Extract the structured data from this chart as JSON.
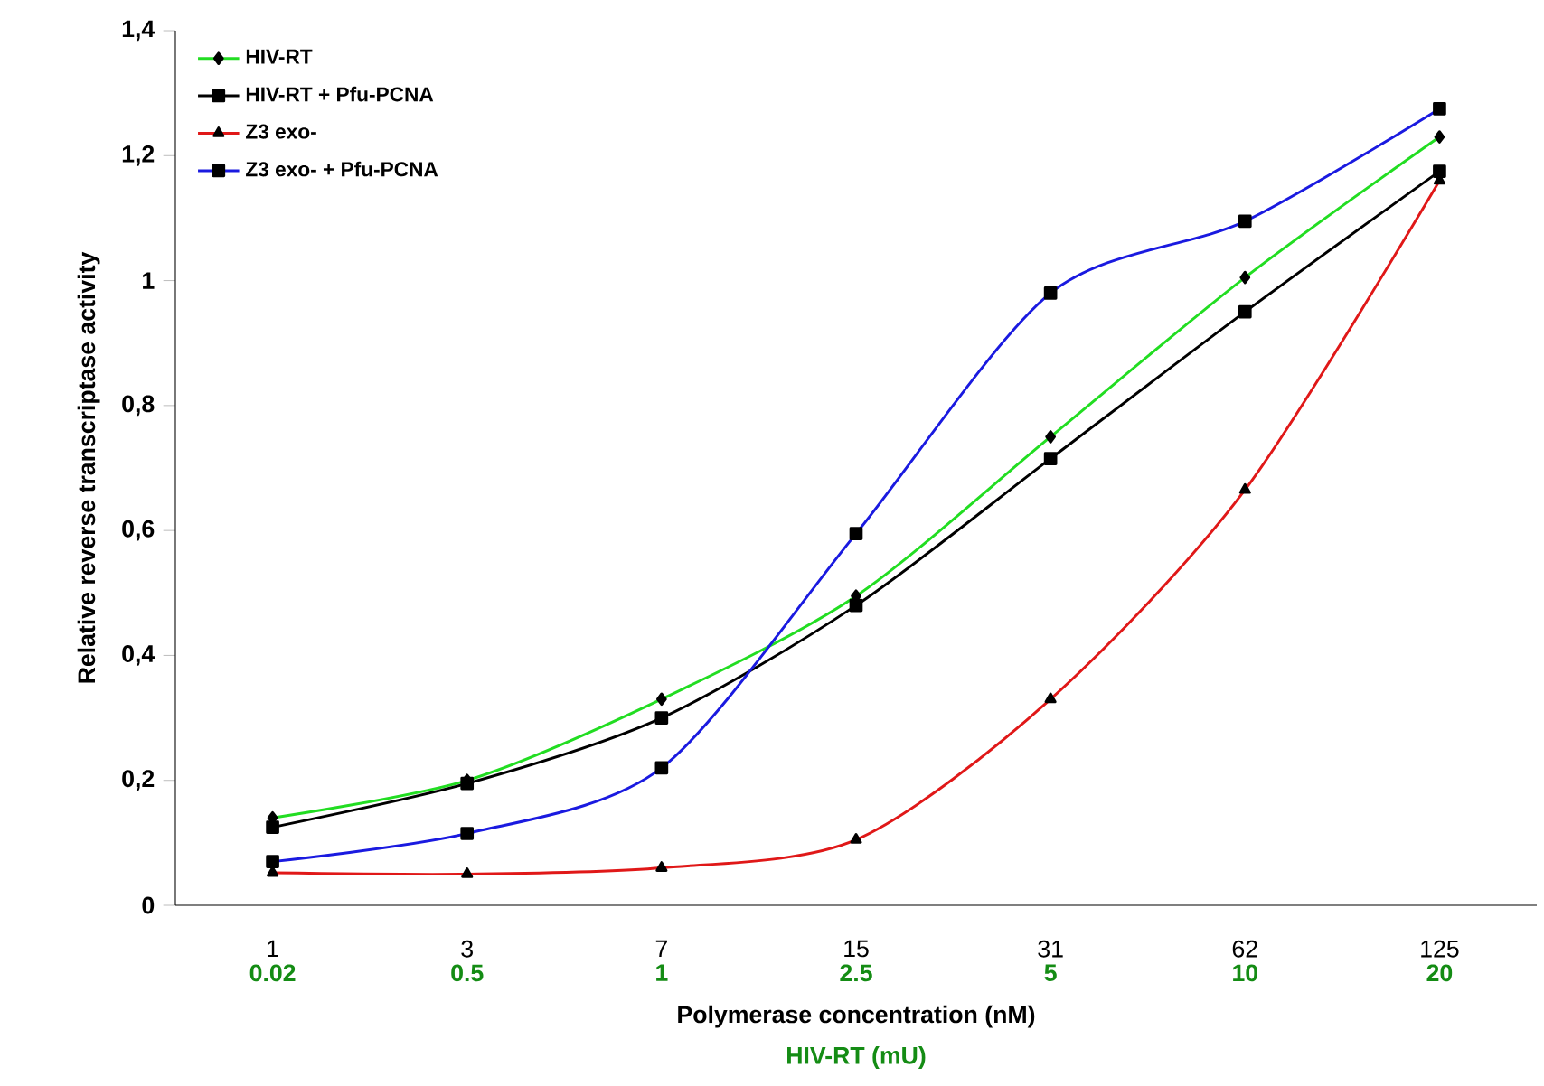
{
  "chart_data": {
    "type": "line",
    "xlabel": "Polymerase concentration (nM)",
    "ylabel": "Relative reverse transcriptase activity",
    "annotations": [
      "0.02",
      "0.5",
      "1",
      "2.5",
      "5",
      "10",
      "20",
      "HIV-RT (mU)"
    ],
    "categories": [
      "1",
      "3",
      "7",
      "15",
      "31",
      "62",
      "125"
    ],
    "ylim": [
      0,
      1.4
    ],
    "yticks": [
      0,
      {
        "value": 0.2,
        "label": "0,2"
      },
      {
        "value": 0.4,
        "label": "0,4"
      },
      {
        "value": 0.6,
        "label": "0,6"
      },
      {
        "value": 0.8,
        "label": "0,8"
      },
      1,
      {
        "value": 1.2,
        "label": "1,2"
      },
      {
        "value": 1.4,
        "label": "1,4"
      }
    ],
    "series": [
      {
        "name": "HIV-RT",
        "color": "#22dd22",
        "marker": "diamond",
        "values": [
          0.14,
          0.2,
          0.33,
          0.495,
          0.75,
          1.005,
          1.23
        ]
      },
      {
        "name": "HIV-RT + Pfu-PCNA",
        "color": "#000000",
        "marker": "square",
        "values": [
          0.125,
          0.195,
          0.3,
          0.48,
          0.715,
          0.95,
          1.175
        ]
      },
      {
        "name": "Z3 exo-",
        "color": "#e01818",
        "marker": "triangle",
        "values": [
          0.052,
          0.05,
          0.06,
          0.105,
          0.33,
          0.665,
          1.16
        ]
      },
      {
        "name": "Z3 exo- + Pfu-PCNA",
        "color": "#1a1ae0",
        "marker": "square",
        "values": [
          0.07,
          0.115,
          0.22,
          0.595,
          0.98,
          1.095,
          1.275
        ]
      }
    ],
    "legend": "top left",
    "grid": false,
    "line_style": "solid"
  }
}
